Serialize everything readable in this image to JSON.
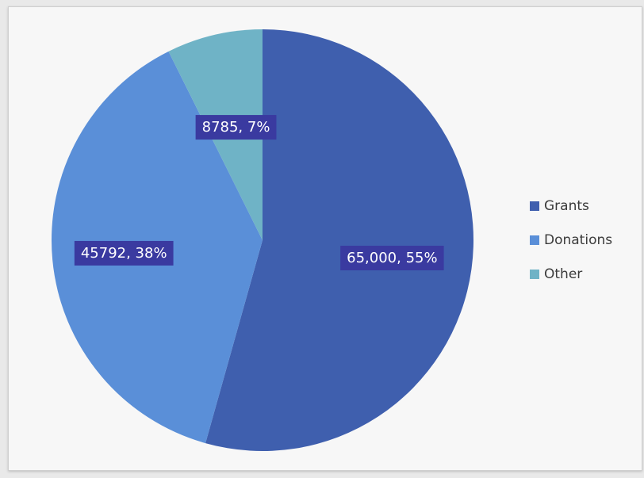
{
  "chart_data": {
    "type": "pie",
    "title": "",
    "categories": [
      "Grants",
      "Donations",
      "Other"
    ],
    "values": [
      65000,
      45792,
      8785
    ],
    "percents": [
      55,
      38,
      7
    ],
    "data_labels": [
      "65,000, 55%",
      "45792, 38%",
      "8785, 7%"
    ],
    "colors": [
      "#3f5fae",
      "#5a8fd8",
      "#6fb3c6"
    ],
    "label_fill": "#3a3aa0",
    "legend_position": "right"
  }
}
